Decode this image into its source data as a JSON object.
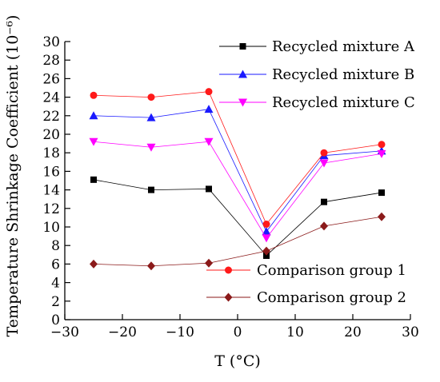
{
  "chart_data": {
    "type": "line",
    "xlabel": "T (°C)",
    "ylabel": "Temperature Shrinkage Coefficient (10⁻⁶)",
    "xlim": [
      -30,
      30
    ],
    "ylim": [
      0,
      30
    ],
    "xticks": [
      -30,
      -20,
      -10,
      0,
      10,
      20,
      30
    ],
    "yticks": [
      0,
      2,
      4,
      6,
      8,
      10,
      12,
      14,
      16,
      18,
      20,
      22,
      24,
      26,
      28,
      30
    ],
    "grid": false,
    "legend_placement": [
      "top-right",
      "bottom-right"
    ],
    "series": [
      {
        "name": "Recycled mixture A",
        "color": "#000000",
        "marker": "square",
        "x": [
          -25,
          -15,
          -5,
          5,
          15,
          25
        ],
        "y": [
          15.1,
          14.0,
          14.1,
          6.9,
          12.7,
          13.7
        ]
      },
      {
        "name": "Recycled mixture B",
        "color": "#1a1aff",
        "marker": "triangle-up",
        "x": [
          -25,
          -15,
          -5,
          5,
          15,
          25
        ],
        "y": [
          22.0,
          21.8,
          22.7,
          9.5,
          17.7,
          18.2
        ]
      },
      {
        "name": "Recycled mixture C",
        "color": "#ff00ff",
        "marker": "triangle-down",
        "x": [
          -25,
          -15,
          -5,
          5,
          15,
          25
        ],
        "y": [
          19.2,
          18.6,
          19.2,
          8.8,
          16.9,
          17.9
        ]
      },
      {
        "name": "Comparison group 1",
        "color": "#ff1a1a",
        "marker": "circle",
        "x": [
          -25,
          -15,
          -5,
          5,
          15,
          25
        ],
        "y": [
          24.2,
          24.0,
          24.6,
          10.3,
          18.0,
          18.9
        ]
      },
      {
        "name": "Comparison group 2",
        "color": "#8b1a1a",
        "marker": "diamond",
        "x": [
          -25,
          -15,
          -5,
          5,
          15,
          25
        ],
        "y": [
          6.0,
          5.8,
          6.1,
          7.4,
          10.1,
          11.1
        ]
      }
    ]
  }
}
